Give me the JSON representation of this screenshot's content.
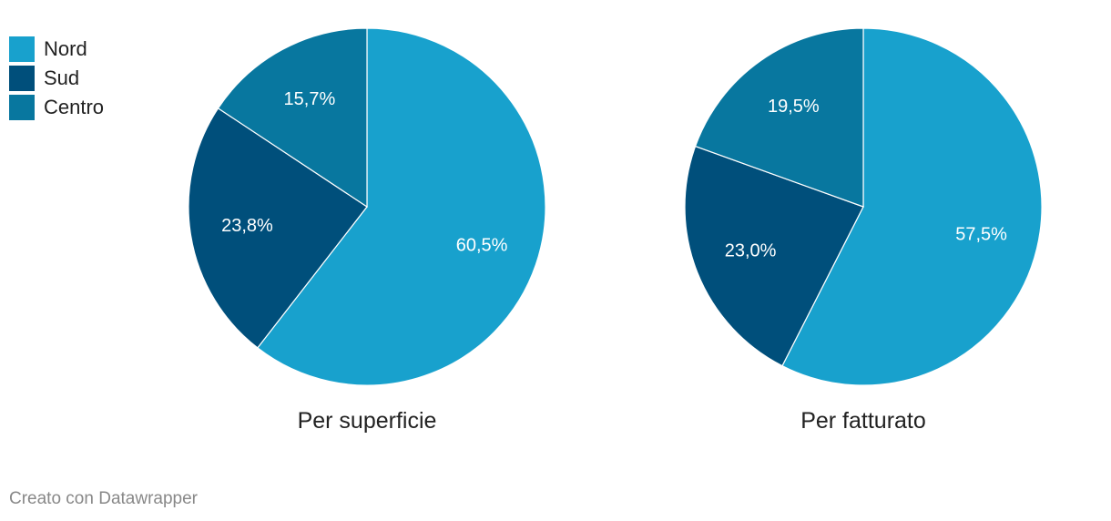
{
  "colors": {
    "Nord": "#18a1cd",
    "Sud": "#004f7b",
    "Centro": "#08779f"
  },
  "legend": {
    "items": [
      {
        "label": "Nord",
        "color": "#18a1cd"
      },
      {
        "label": "Sud",
        "color": "#004f7b"
      },
      {
        "label": "Centro",
        "color": "#08779f"
      }
    ]
  },
  "chart_data": [
    {
      "type": "pie",
      "title": "Per superficie",
      "categories": [
        "Nord",
        "Sud",
        "Centro"
      ],
      "values": [
        60.5,
        23.8,
        15.7
      ],
      "labels": [
        "60,5%",
        "23,8%",
        "15,7%"
      ]
    },
    {
      "type": "pie",
      "title": "Per fatturato",
      "categories": [
        "Nord",
        "Sud",
        "Centro"
      ],
      "values": [
        57.5,
        23.0,
        19.5
      ],
      "labels": [
        "57,5%",
        "23,0%",
        "19,5%"
      ]
    }
  ],
  "footer": {
    "credit": "Creato con Datawrapper"
  }
}
